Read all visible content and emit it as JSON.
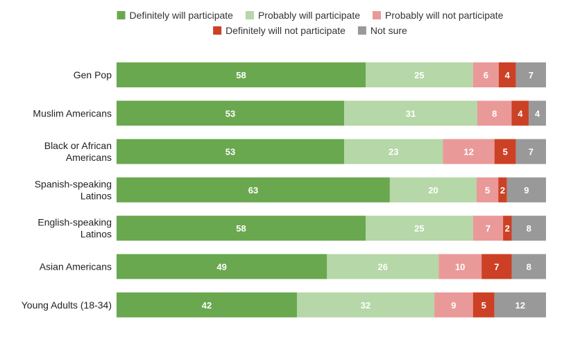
{
  "chart_data": {
    "type": "bar",
    "orientation": "horizontal",
    "stacked": true,
    "legend_position": "top",
    "grid": false,
    "categories": [
      "Gen Pop",
      "Muslim Americans",
      "Black or African Americans",
      "Spanish-speaking Latinos",
      "English-speaking Latinos",
      "Asian Americans",
      "Young Adults (18-34)"
    ],
    "category_lines": [
      [
        "Gen Pop"
      ],
      [
        "Muslim Americans"
      ],
      [
        "Black or African",
        "Americans"
      ],
      [
        "Spanish-speaking",
        "Latinos"
      ],
      [
        "English-speaking",
        "Latinos"
      ],
      [
        "Asian Americans"
      ],
      [
        "Young Adults (18-34)"
      ]
    ],
    "series": [
      {
        "name": "Definitely will participate",
        "color": "#6aa84f",
        "values": [
          58,
          53,
          53,
          63,
          58,
          49,
          42
        ]
      },
      {
        "name": "Probably will participate",
        "color": "#b6d7a8",
        "values": [
          25,
          31,
          23,
          20,
          25,
          26,
          32
        ]
      },
      {
        "name": "Probably will not participate",
        "color": "#ea9999",
        "values": [
          6,
          8,
          12,
          5,
          7,
          10,
          9
        ]
      },
      {
        "name": "Definitely will not participate",
        "color": "#cc4125",
        "values": [
          4,
          4,
          5,
          2,
          2,
          7,
          5
        ]
      },
      {
        "name": "Not sure",
        "color": "#999999",
        "values": [
          7,
          4,
          7,
          9,
          8,
          8,
          12
        ]
      }
    ]
  }
}
